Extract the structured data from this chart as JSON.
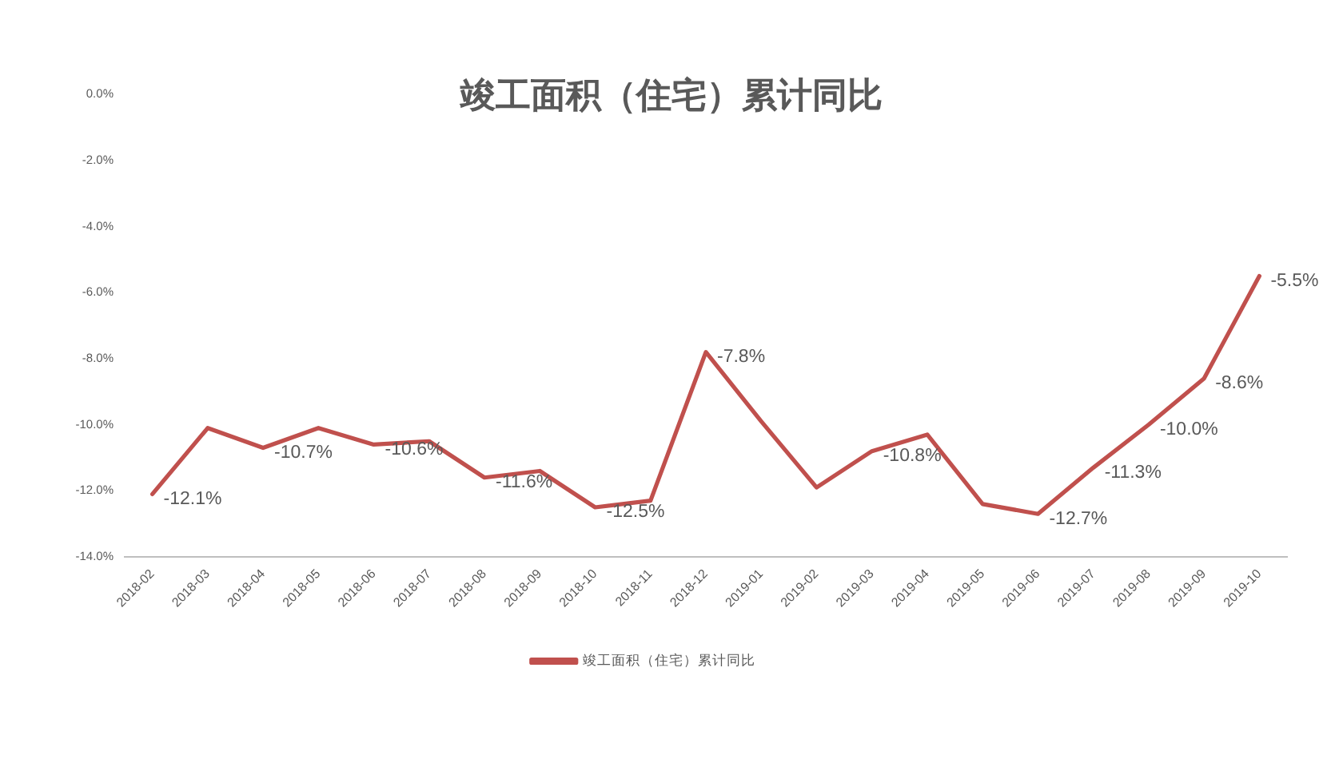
{
  "chart_data": {
    "type": "line",
    "title": "竣工面积（住宅）累计同比",
    "categories": [
      "2018-02",
      "2018-03",
      "2018-04",
      "2018-05",
      "2018-06",
      "2018-07",
      "2018-08",
      "2018-09",
      "2018-10",
      "2018-11",
      "2018-12",
      "2019-01",
      "2019-02",
      "2019-03",
      "2019-04",
      "2019-05",
      "2019-06",
      "2019-07",
      "2019-08",
      "2019-09",
      "2019-10"
    ],
    "series": [
      {
        "name": "竣工面积（住宅）累计同比",
        "color": "#c0504d",
        "values": [
          -12.1,
          -10.1,
          -10.7,
          -10.1,
          -10.6,
          -10.5,
          -11.6,
          -11.4,
          -12.5,
          -12.3,
          -7.8,
          -9.9,
          -11.9,
          -10.8,
          -10.3,
          -12.4,
          -12.7,
          -11.3,
          -10.0,
          -8.6,
          -5.5
        ],
        "value_labels": [
          "-12.1%",
          null,
          "-10.7%",
          null,
          "-10.6%",
          null,
          "-11.6%",
          null,
          "-12.5%",
          null,
          "-7.8%",
          null,
          null,
          "-10.8%",
          null,
          null,
          "-12.7%",
          "-11.3%",
          "-10.0%",
          "-8.6%",
          "-5.5%"
        ]
      }
    ],
    "ylim": [
      -14,
      0
    ],
    "yticks": [
      {
        "value": -14,
        "label": "-14.0%"
      },
      {
        "value": -12,
        "label": "-12.0%"
      },
      {
        "value": -10,
        "label": "-10.0%"
      },
      {
        "value": -8,
        "label": "-8.0%"
      },
      {
        "value": -6,
        "label": "-6.0%"
      },
      {
        "value": -4,
        "label": "-4.0%"
      },
      {
        "value": -2,
        "label": "-2.0%"
      },
      {
        "value": 0,
        "label": "0.0%"
      }
    ],
    "grid": false,
    "legend": "bottom",
    "marker": "none",
    "line_style": "solid"
  }
}
